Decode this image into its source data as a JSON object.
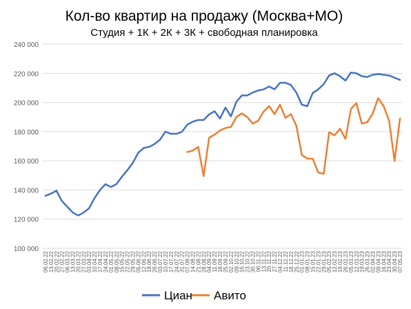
{
  "chart_data": {
    "type": "line",
    "title": "Кол-во квартир на продажу (Москва+МО)",
    "subtitle": "Студия + 1К + 2К + 3К + свободная планировка",
    "xlabel": "",
    "ylabel": "",
    "ylim": [
      100000,
      240000
    ],
    "yticks": [
      100000,
      120000,
      140000,
      160000,
      180000,
      200000,
      220000,
      240000
    ],
    "ytick_labels": [
      "100 000",
      "120 000",
      "140 000",
      "160 000",
      "180 000",
      "200 000",
      "220 000",
      "240 000"
    ],
    "grid": true,
    "legend_position": "bottom",
    "categories": [
      "06.02.22",
      "13.02.22",
      "20.02.22",
      "27.02.22",
      "06.03.22",
      "13.03.22",
      "20.03.22",
      "27.03.22",
      "03.04.22",
      "10.04.22",
      "17.04.22",
      "24.04.22",
      "01.05.22",
      "08.05.22",
      "15.05.22",
      "22.05.22",
      "29.05.22",
      "05.06.22",
      "12.06.22",
      "19.06.22",
      "26.06.22",
      "03.07.22",
      "10.07.22",
      "17.07.22",
      "24.07.22",
      "31.07.22",
      "07.08.22",
      "14.08.22",
      "21.08.22",
      "28.08.22",
      "04.09.22",
      "11.09.22",
      "18.09.22",
      "25.09.22",
      "02.10.22",
      "09.10.22",
      "16.10.22",
      "23.10.22",
      "30.10.22",
      "06.11.22",
      "13.11.22",
      "20.11.22",
      "27.11.22",
      "04.12.22",
      "11.12.22",
      "18.12.22",
      "25.12.22",
      "01.01.23",
      "08.01.23",
      "15.01.23",
      "22.01.23",
      "29.01.23",
      "05.02.23",
      "12.02.23",
      "19.02.23",
      "26.02.23",
      "05.03.23",
      "12.03.23",
      "19.03.23",
      "26.03.23",
      "02.04.23",
      "09.04.23",
      "16.04.23",
      "23.04.23",
      "30.04.23",
      "07.05.23"
    ],
    "series": [
      {
        "name": "Циан",
        "color": "#4472C4",
        "values": [
          136000,
          137500,
          139500,
          132500,
          128500,
          124500,
          122500,
          124500,
          127500,
          134500,
          140000,
          144000,
          142000,
          144000,
          149000,
          153500,
          158500,
          165500,
          168800,
          169500,
          171500,
          174500,
          180000,
          178500,
          178500,
          179800,
          184800,
          186800,
          188000,
          188000,
          191800,
          194000,
          189000,
          196500,
          190500,
          200500,
          204800,
          204800,
          206800,
          208200,
          209000,
          211000,
          209000,
          213500,
          213500,
          212000,
          206800,
          198500,
          197500,
          206500,
          209000,
          212500,
          218500,
          220000,
          218000,
          215000,
          220500,
          220000,
          218000,
          217500,
          219000,
          219500,
          219000,
          218500,
          217000,
          215500
        ]
      },
      {
        "name": "Авито",
        "color": "#ED7D31",
        "values": [
          null,
          null,
          null,
          null,
          null,
          null,
          null,
          null,
          null,
          null,
          null,
          null,
          null,
          null,
          null,
          null,
          null,
          null,
          null,
          null,
          null,
          null,
          null,
          null,
          null,
          null,
          166000,
          167000,
          169500,
          149500,
          175800,
          178000,
          180800,
          182500,
          183200,
          190000,
          192500,
          190000,
          185500,
          187500,
          193800,
          197500,
          192000,
          198500,
          189500,
          192000,
          184000,
          164000,
          161500,
          161500,
          152000,
          151000,
          179500,
          177500,
          182000,
          175000,
          195500,
          199500,
          185500,
          186500,
          192500,
          203000,
          197500,
          187500,
          160000,
          189000
        ]
      }
    ]
  }
}
